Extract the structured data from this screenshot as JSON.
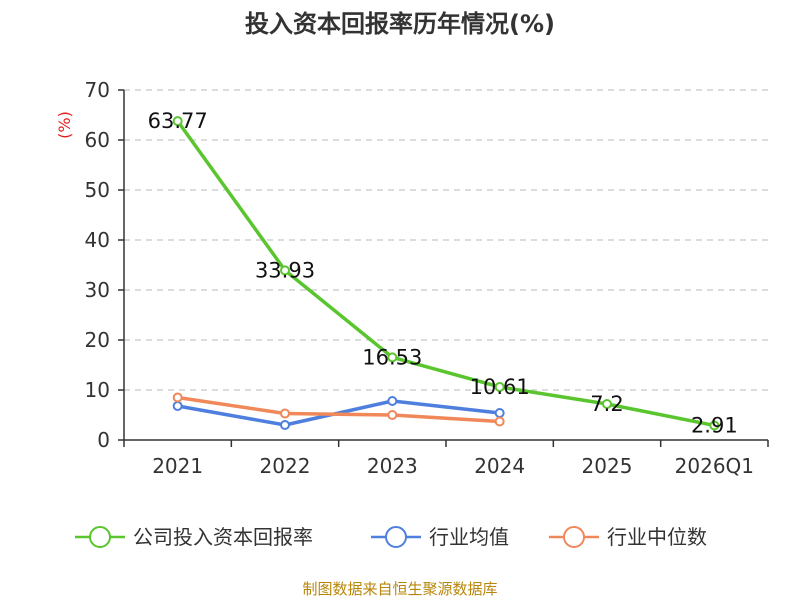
{
  "chart_data": {
    "type": "line",
    "title": "投入资本回报率历年情况(%)",
    "ylabel": "(%)",
    "xlabel": "",
    "ylim": [
      0,
      70
    ],
    "yticks": [
      0,
      10,
      20,
      30,
      40,
      50,
      60,
      70
    ],
    "grid": true,
    "legend_position": "bottom",
    "categories": [
      "2021",
      "2022",
      "2023",
      "2024",
      "2025",
      "2026Q1"
    ],
    "series": [
      {
        "name": "公司投入资本回报率",
        "color": "#5ac52e",
        "values": [
          63.77,
          33.93,
          16.53,
          10.61,
          7.2,
          2.91
        ],
        "labels": [
          "63.77",
          "33.93",
          "16.53",
          "10.61",
          "7.2",
          "2.91"
        ]
      },
      {
        "name": "行业均值",
        "color": "#4f7fde",
        "values": [
          6.8,
          3.0,
          7.8,
          5.4,
          null,
          null
        ]
      },
      {
        "name": "行业中位数",
        "color": "#f0885a",
        "values": [
          8.5,
          5.3,
          5.0,
          3.7,
          null,
          null
        ]
      }
    ]
  },
  "source": "制图数据来自恒生聚源数据库"
}
